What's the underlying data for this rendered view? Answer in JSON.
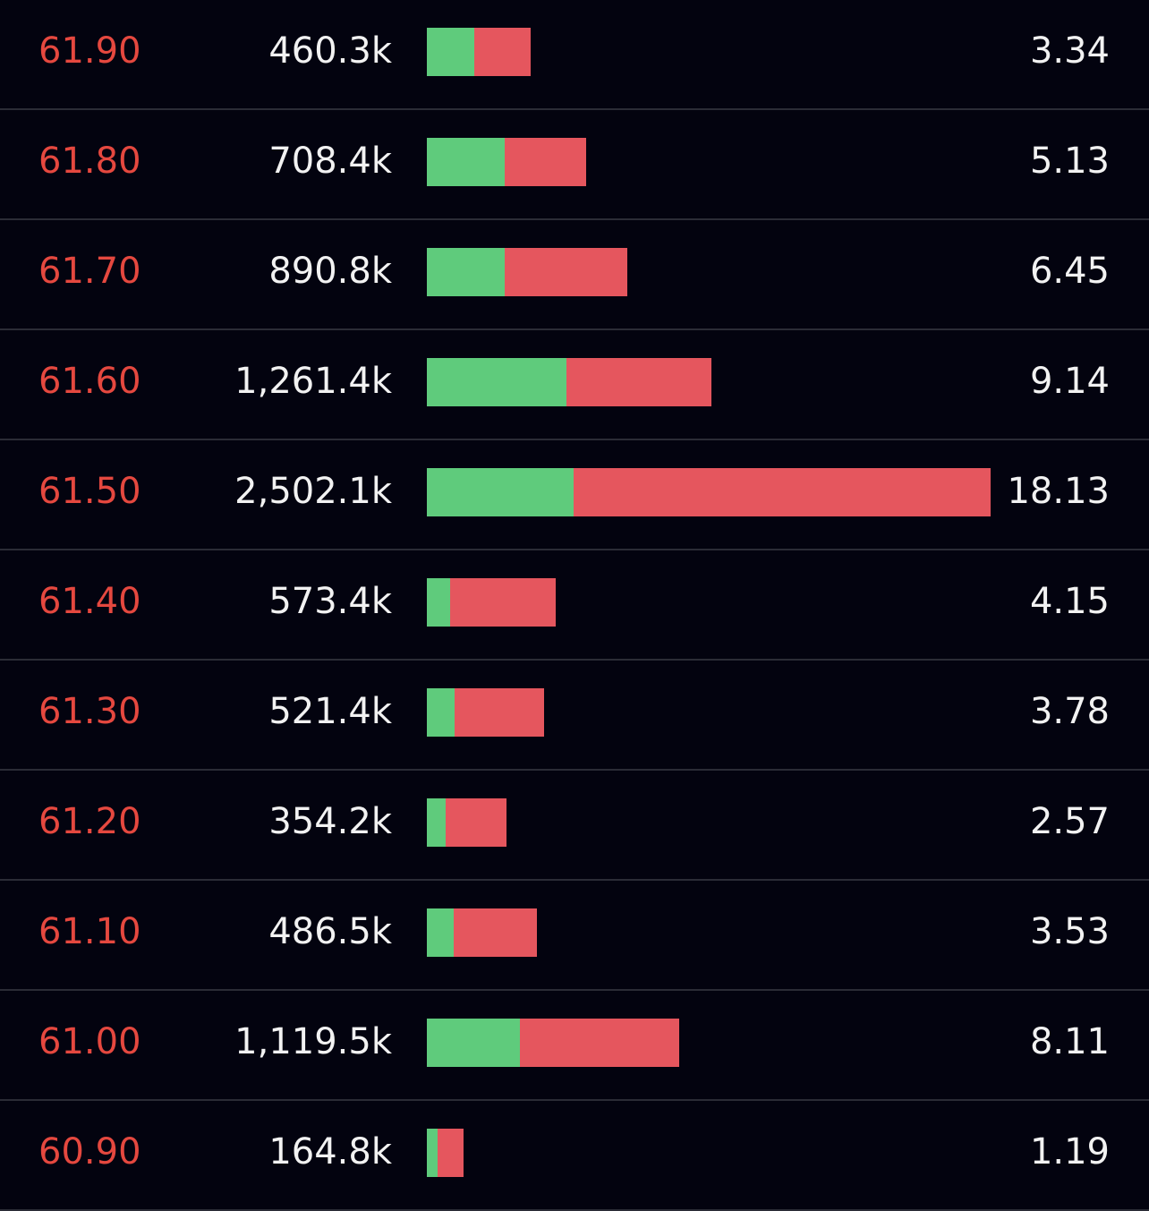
{
  "colors": {
    "background": "#03030f",
    "price_text": "#e5483f",
    "value_text": "#f2f2f2",
    "buy_bar": "#5fcb7c",
    "sell_bar": "#e5565e",
    "divider": "#2b2c36"
  },
  "bar_scale_max_percent": 18.13,
  "rows": [
    {
      "price": "61.90",
      "volume": "460.3k",
      "percent": "3.34",
      "percent_value": 3.34,
      "buy_fraction": 0.46
    },
    {
      "price": "61.80",
      "volume": "708.4k",
      "percent": "5.13",
      "percent_value": 5.13,
      "buy_fraction": 0.49
    },
    {
      "price": "61.70",
      "volume": "890.8k",
      "percent": "6.45",
      "percent_value": 6.45,
      "buy_fraction": 0.39
    },
    {
      "price": "61.60",
      "volume": "1,261.4k",
      "percent": "9.14",
      "percent_value": 9.14,
      "buy_fraction": 0.49
    },
    {
      "price": "61.50",
      "volume": "2,502.1k",
      "percent": "18.13",
      "percent_value": 18.13,
      "buy_fraction": 0.26
    },
    {
      "price": "61.40",
      "volume": "573.4k",
      "percent": "4.15",
      "percent_value": 4.15,
      "buy_fraction": 0.18
    },
    {
      "price": "61.30",
      "volume": "521.4k",
      "percent": "3.78",
      "percent_value": 3.78,
      "buy_fraction": 0.24
    },
    {
      "price": "61.20",
      "volume": "354.2k",
      "percent": "2.57",
      "percent_value": 2.57,
      "buy_fraction": 0.24
    },
    {
      "price": "61.10",
      "volume": "486.5k",
      "percent": "3.53",
      "percent_value": 3.53,
      "buy_fraction": 0.24
    },
    {
      "price": "61.00",
      "volume": "1,119.5k",
      "percent": "8.11",
      "percent_value": 8.11,
      "buy_fraction": 0.37
    },
    {
      "price": "60.90",
      "volume": "164.8k",
      "percent": "1.19",
      "percent_value": 1.19,
      "buy_fraction": 0.3
    }
  ]
}
